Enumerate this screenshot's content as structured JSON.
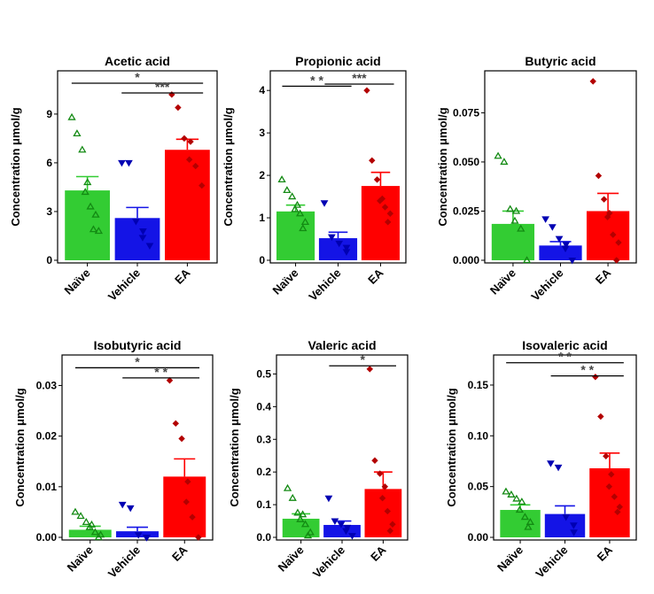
{
  "chart_data": [
    {
      "type": "bar",
      "title": "Acetic acid",
      "ylabel": "Concentration μmol/g",
      "categories": [
        "Naïve",
        "Vehicle",
        "EA"
      ],
      "colors": [
        "#33cc33",
        "#1414e6",
        "#ff0000"
      ],
      "ylim": [
        0,
        11.5
      ],
      "yticks": [
        0,
        3,
        6,
        9
      ],
      "ytick_labels": [
        "0",
        "3",
        "6",
        "9"
      ],
      "values": [
        4.3,
        2.6,
        6.8
      ],
      "errors": [
        0.85,
        0.65,
        0.65
      ],
      "points": [
        [
          8.8,
          7.8,
          6.8,
          4.8,
          4.2,
          3.3,
          2.8,
          1.9,
          1.8
        ],
        [
          6.0,
          6.0,
          2.4,
          1.8,
          1.4,
          0.9
        ],
        [
          10.2,
          9.4,
          7.5,
          7.3,
          6.2,
          5.8,
          4.6
        ]
      ],
      "significance": [
        {
          "from": 0,
          "to": 2,
          "y": 10.9,
          "label": "*"
        },
        {
          "from": 1,
          "to": 2,
          "y": 10.3,
          "label": "***"
        }
      ]
    },
    {
      "type": "bar",
      "title": "Propionic acid",
      "ylabel": "Concentration μmol/g",
      "categories": [
        "Naïve",
        "Vehicle",
        "EA"
      ],
      "colors": [
        "#33cc33",
        "#1414e6",
        "#ff0000"
      ],
      "ylim": [
        0,
        4.4
      ],
      "yticks": [
        0,
        1,
        2,
        3,
        4
      ],
      "ytick_labels": [
        "0",
        "1",
        "2",
        "3",
        "4"
      ],
      "values": [
        1.15,
        0.52,
        1.75
      ],
      "errors": [
        0.15,
        0.14,
        0.32
      ],
      "points": [
        [
          1.9,
          1.65,
          1.5,
          1.3,
          1.2,
          1.1,
          0.9,
          0.75
        ],
        [
          1.35,
          0.55,
          0.4,
          0.3,
          0.2
        ],
        [
          4.0,
          2.35,
          1.9,
          1.45,
          1.4,
          1.25,
          1.1,
          0.9
        ]
      ],
      "significance": [
        {
          "from": 0,
          "to": 1,
          "y": 4.1,
          "label": "* *"
        },
        {
          "from": 1,
          "to": 2,
          "y": 4.15,
          "label": "***"
        }
      ]
    },
    {
      "type": "bar",
      "title": "Butyric acid",
      "ylabel": "Concentration μmol/g",
      "categories": [
        "Naïve",
        "Vehicle",
        "EA"
      ],
      "colors": [
        "#33cc33",
        "#1414e6",
        "#ff0000"
      ],
      "ylim": [
        0,
        0.095
      ],
      "yticks": [
        0,
        0.025,
        0.05,
        0.075
      ],
      "ytick_labels": [
        "0.000",
        "0.025",
        "0.050",
        "0.075"
      ],
      "values": [
        0.0185,
        0.0075,
        0.025
      ],
      "errors": [
        0.0065,
        0.002,
        0.009
      ],
      "points": [
        [
          0.053,
          0.05,
          0.026,
          0.025,
          0.02,
          0.016,
          0.0
        ],
        [
          0.021,
          0.017,
          0.011,
          0.008,
          0.006,
          0.0
        ],
        [
          0.091,
          0.043,
          0.031,
          0.024,
          0.022,
          0.013,
          0.009,
          0.0
        ]
      ],
      "significance": []
    },
    {
      "type": "bar",
      "title": "Isobutyric acid",
      "ylabel": "Concentration μmol/g",
      "categories": [
        "Naïve",
        "Vehicle",
        "EA"
      ],
      "colors": [
        "#33cc33",
        "#1414e6",
        "#ff0000"
      ],
      "ylim": [
        0,
        0.0355
      ],
      "yticks": [
        0,
        0.01,
        0.02,
        0.03
      ],
      "ytick_labels": [
        "0.00",
        "0.01",
        "0.02",
        "0.03"
      ],
      "values": [
        0.0015,
        0.0012,
        0.012
      ],
      "errors": [
        0.0007,
        0.0008,
        0.0035
      ],
      "points": [
        [
          0.005,
          0.0042,
          0.003,
          0.0025,
          0.002,
          0.001,
          0.0005,
          0.0
        ],
        [
          0.0065,
          0.0058,
          0.0005,
          0.0,
          0.0
        ],
        [
          0.031,
          0.0225,
          0.0195,
          0.011,
          0.007,
          0.004,
          0.0
        ]
      ],
      "significance": [
        {
          "from": 0,
          "to": 2,
          "y": 0.0335,
          "label": "*"
        },
        {
          "from": 1,
          "to": 2,
          "y": 0.0315,
          "label": "* *"
        }
      ]
    },
    {
      "type": "bar",
      "title": "Valeric acid",
      "ylabel": "Concentration μmol/g",
      "categories": [
        "Naïve",
        "Vehicle",
        "EA"
      ],
      "colors": [
        "#33cc33",
        "#1414e6",
        "#ff0000"
      ],
      "ylim": [
        0,
        0.55
      ],
      "yticks": [
        0,
        0.1,
        0.2,
        0.3,
        0.4,
        0.5
      ],
      "ytick_labels": [
        "0.0",
        "0.1",
        "0.2",
        "0.3",
        "0.4",
        "0.5"
      ],
      "values": [
        0.057,
        0.038,
        0.148
      ],
      "errors": [
        0.015,
        0.012,
        0.052
      ],
      "points": [
        [
          0.15,
          0.12,
          0.075,
          0.07,
          0.055,
          0.04,
          0.015,
          0.005
        ],
        [
          0.12,
          0.05,
          0.04,
          0.03,
          0.02,
          0.005
        ],
        [
          0.515,
          0.235,
          0.195,
          0.155,
          0.12,
          0.08,
          0.04,
          0.02
        ]
      ],
      "significance": [
        {
          "from": 1,
          "to": 2,
          "y": 0.525,
          "label": "*"
        }
      ]
    },
    {
      "type": "bar",
      "title": "Isovaleric acid",
      "ylabel": "Concentration μmol/g",
      "categories": [
        "Naïve",
        "Vehicle",
        "EA"
      ],
      "colors": [
        "#33cc33",
        "#1414e6",
        "#ff0000"
      ],
      "ylim": [
        0,
        0.177
      ],
      "yticks": [
        0,
        0.05,
        0.1,
        0.15
      ],
      "ytick_labels": [
        "0.00",
        "0.05",
        "0.10",
        "0.15"
      ],
      "values": [
        0.027,
        0.023,
        0.068
      ],
      "errors": [
        0.005,
        0.008,
        0.015
      ],
      "points": [
        [
          0.045,
          0.042,
          0.038,
          0.035,
          0.027,
          0.02,
          0.015,
          0.01
        ],
        [
          0.073,
          0.069,
          0.02,
          0.012,
          0.005
        ],
        [
          0.158,
          0.119,
          0.08,
          0.062,
          0.05,
          0.04,
          0.03,
          0.025
        ]
      ],
      "significance": [
        {
          "from": 0,
          "to": 2,
          "y": 0.172,
          "label": "* *"
        },
        {
          "from": 1,
          "to": 2,
          "y": 0.159,
          "label": "* *"
        }
      ]
    }
  ]
}
